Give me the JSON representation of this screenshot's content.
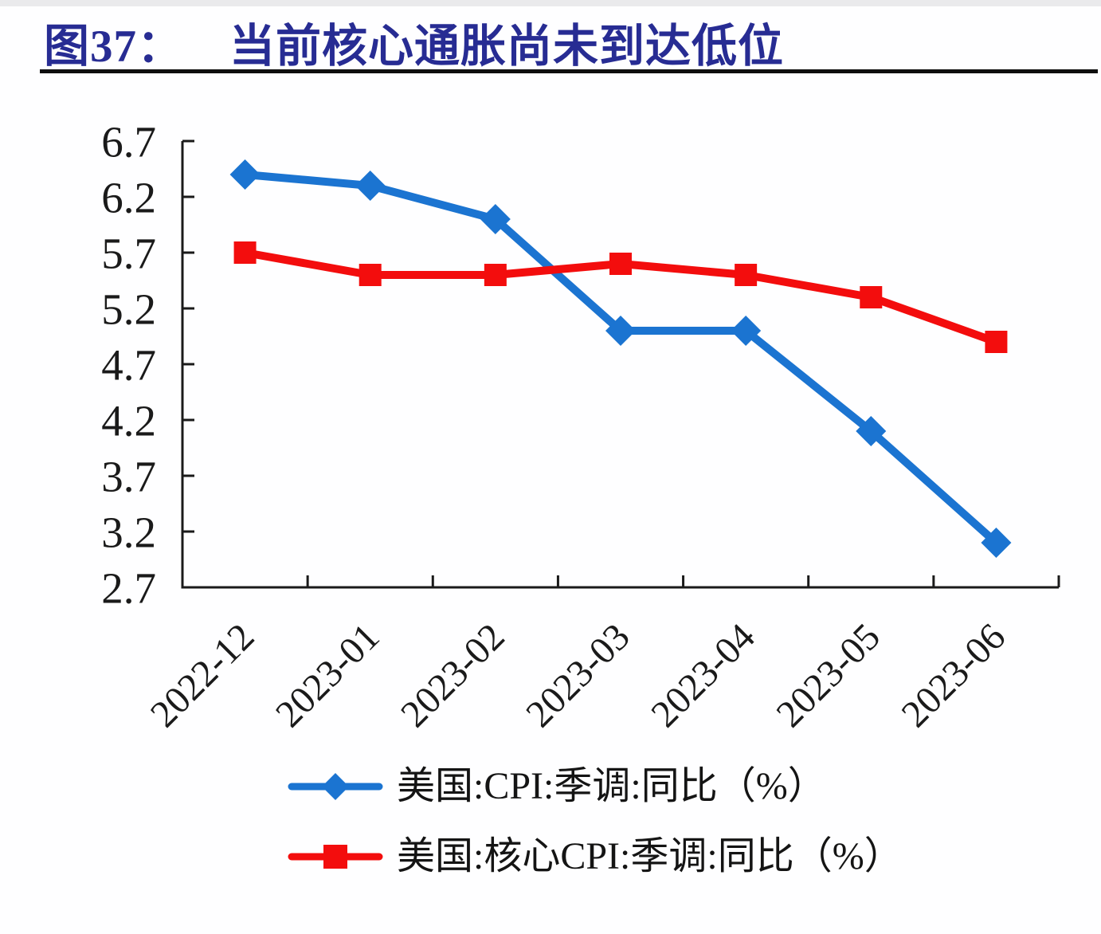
{
  "title": "图37： 当前核心通胀尚未到达低位",
  "colors": {
    "title": "#272c93",
    "axis": "#1a1a1a",
    "rule": "#0e0e0e",
    "cpi_blue": "#1b74d1",
    "core_red": "#f30d0d"
  },
  "chart_data": {
    "type": "line",
    "categories": [
      "2022-12",
      "2023-01",
      "2023-02",
      "2023-03",
      "2023-04",
      "2023-05",
      "2023-06"
    ],
    "series": [
      {
        "name": "美国:CPI:季调:同比（%）",
        "color": "#1b74d1",
        "marker": "diamond",
        "values": [
          6.4,
          6.3,
          6.0,
          5.0,
          5.0,
          4.1,
          3.1
        ]
      },
      {
        "name": "美国:核心CPI:季调:同比（%）",
        "color": "#f30d0d",
        "marker": "square",
        "values": [
          5.7,
          5.5,
          5.5,
          5.6,
          5.5,
          5.3,
          4.9
        ]
      }
    ],
    "ylim": [
      2.7,
      6.7
    ],
    "yticks": [
      6.7,
      6.2,
      5.7,
      5.2,
      4.7,
      4.2,
      3.7,
      3.2,
      2.7
    ],
    "grid": false,
    "legend_position": "bottom",
    "x_label_rotation": -45
  }
}
